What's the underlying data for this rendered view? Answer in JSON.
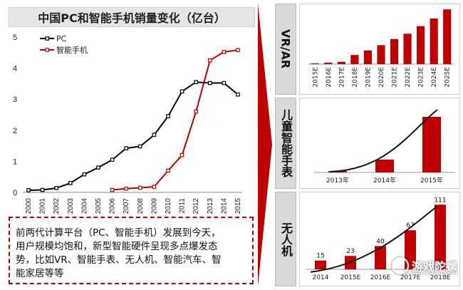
{
  "chart_data": [
    {
      "type": "line",
      "title": "中国PC和智能手机销量变化（亿台）",
      "categories": [
        "2000",
        "2001",
        "2002",
        "2003",
        "2004",
        "2005",
        "2006",
        "2007",
        "2008",
        "2009",
        "2010",
        "2011",
        "2012",
        "2013",
        "2014",
        "2015"
      ],
      "ylim": [
        0,
        5
      ],
      "yticks": [
        "0",
        "1",
        "2",
        "3",
        "4",
        "5"
      ],
      "legend_position": "top-left",
      "series": [
        {
          "name": "PC",
          "color": "#000000",
          "values": [
            0.07,
            0.08,
            0.14,
            0.3,
            0.58,
            0.8,
            1.05,
            1.42,
            1.48,
            1.85,
            2.45,
            3.25,
            3.55,
            3.52,
            3.52,
            3.15
          ]
        },
        {
          "name": "智能手机",
          "color": "#c00000",
          "values": [
            null,
            null,
            null,
            null,
            null,
            null,
            0.08,
            0.12,
            0.15,
            0.18,
            0.7,
            1.2,
            2.6,
            4.25,
            4.52,
            4.58
          ]
        }
      ]
    },
    {
      "type": "bar",
      "section_label": "VR/AR",
      "categories": [
        "2015E",
        "2016E",
        "2017E",
        "2018E",
        "2019E",
        "2020E",
        "2021E",
        "2022E",
        "2023E",
        "2024E",
        "2025E"
      ],
      "values": [
        1,
        2,
        3,
        12,
        18,
        25,
        33,
        40,
        50,
        60,
        72
      ],
      "ylim": [
        0,
        75
      ]
    },
    {
      "type": "bar",
      "section_label": "儿童智能手表",
      "categories": [
        "2013年",
        "2014年",
        "2015年"
      ],
      "values": [
        2,
        18,
        78
      ],
      "ylim": [
        0,
        100
      ],
      "trendline": true
    },
    {
      "type": "bar",
      "section_label": "无人机",
      "categories": [
        "2014",
        "2015E",
        "2016E",
        "2017E",
        "2018E"
      ],
      "values": [
        15,
        23,
        40,
        67,
        111
      ],
      "data_labels": [
        "15",
        "23",
        "40",
        "67",
        "111"
      ],
      "ylim": [
        0,
        115
      ],
      "trendline": true
    }
  ],
  "note": {
    "lines": [
      "前两代计算平台（PC、智能手机）发展到今天，",
      "用户规模均饱和，新型智能硬件呈现多点爆发态",
      "势，比如VR、智能手表、无人机、智能汽车、智",
      "能家居等等"
    ]
  },
  "watermark": {
    "brand": "游戏陀螺",
    "url": "YOUXITUOLUO.COM"
  }
}
